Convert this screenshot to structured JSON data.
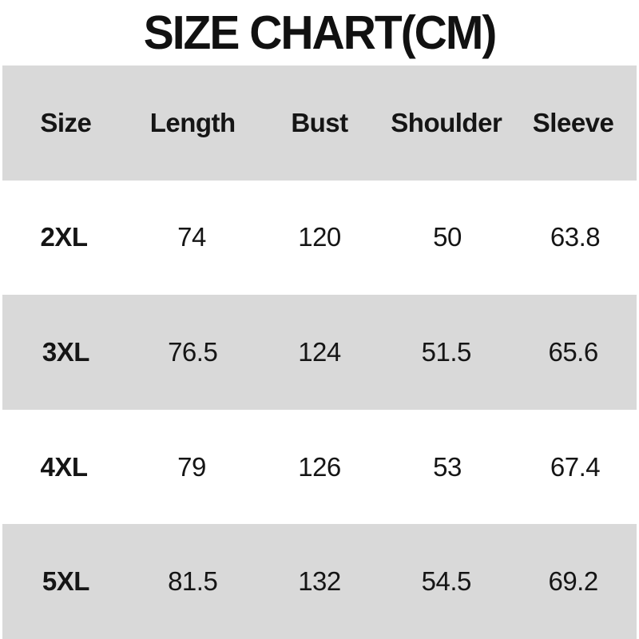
{
  "title": "SIZE CHART(CM)",
  "colors": {
    "band_gray": "#d9d9d9",
    "background": "#ffffff",
    "text": "#151515"
  },
  "chart_data": {
    "type": "table",
    "title": "SIZE CHART(CM)",
    "unit": "cm",
    "columns": [
      "Size",
      "Length",
      "Bust",
      "Shoulder",
      "Sleeve"
    ],
    "rows": [
      [
        "2XL",
        "74",
        "120",
        "50",
        "63.8"
      ],
      [
        "3XL",
        "76.5",
        "124",
        "51.5",
        "65.6"
      ],
      [
        "4XL",
        "79",
        "126",
        "53",
        "67.4"
      ],
      [
        "5XL",
        "81.5",
        "132",
        "54.5",
        "69.2"
      ]
    ]
  }
}
